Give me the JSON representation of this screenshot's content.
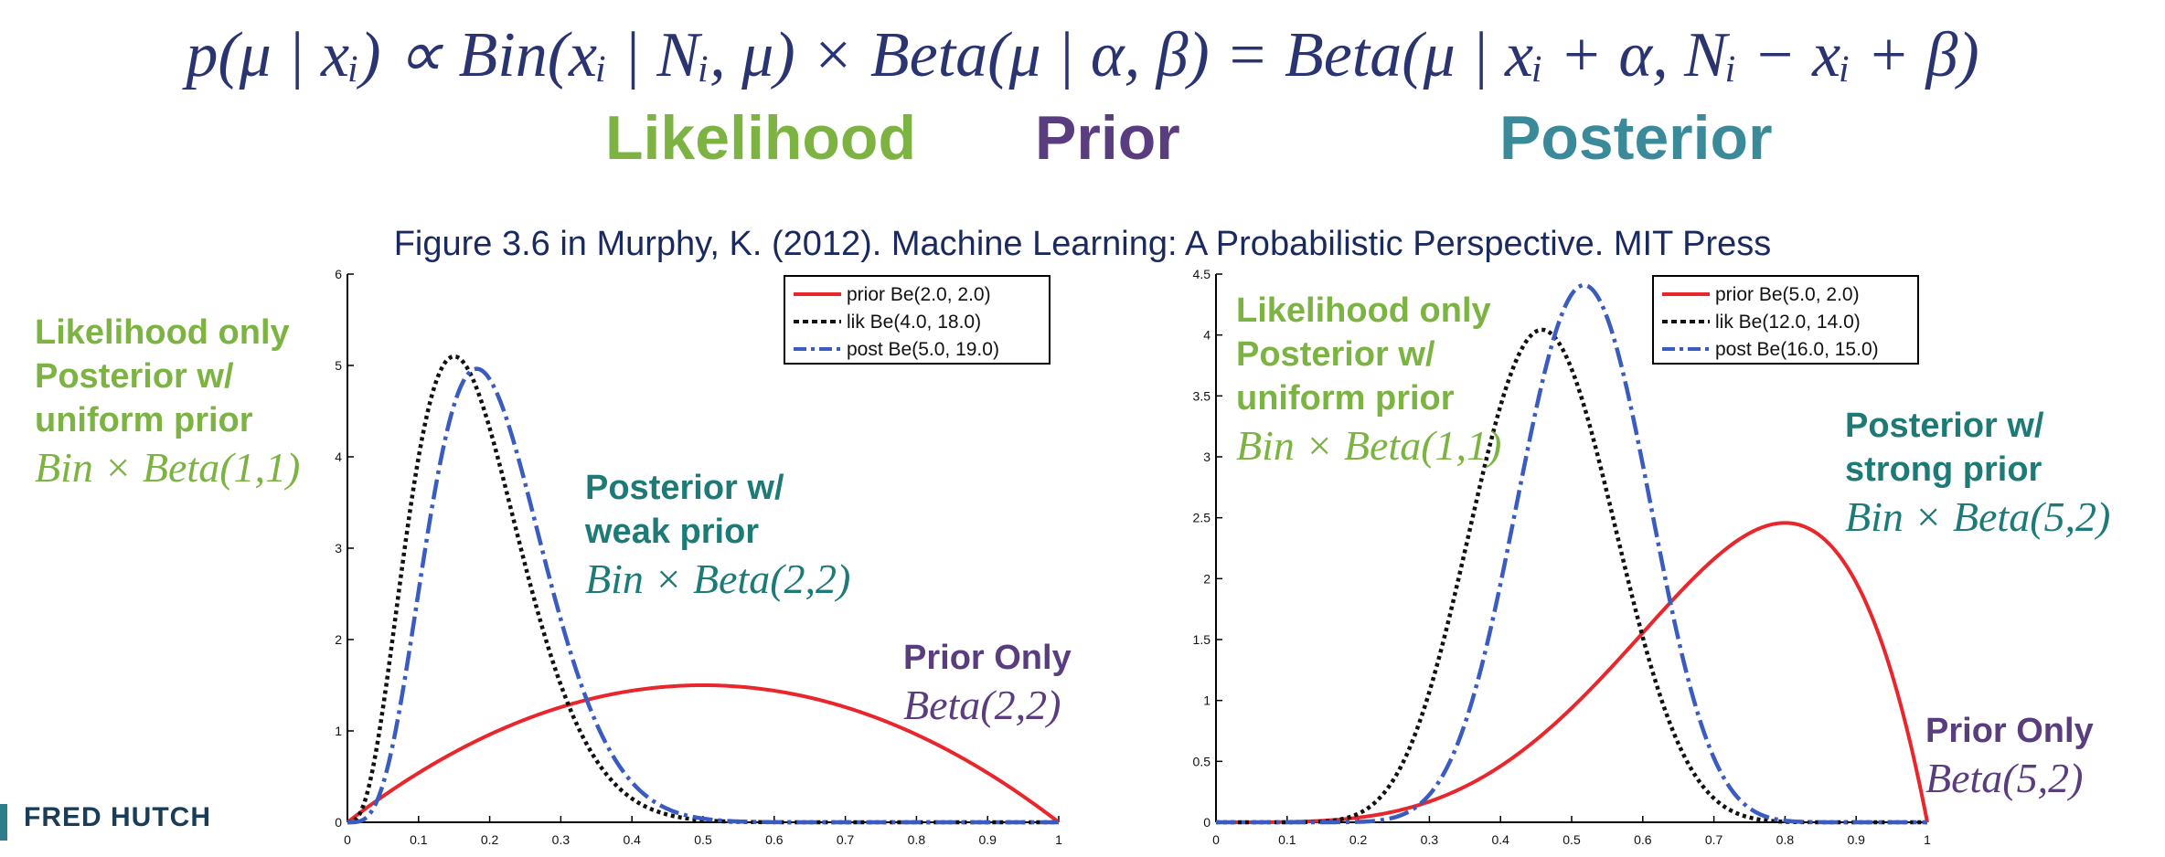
{
  "header": {
    "equation": "p(μ | xᵢ) ∝ Bin(xᵢ | Nᵢ, μ) × Beta(μ | α, β) = Beta(μ | xᵢ + α, Nᵢ − xᵢ + β)",
    "label_likelihood": "Likelihood",
    "label_prior": "Prior",
    "label_posterior": "Posterior",
    "caption": "Figure 3.6 in Murphy, K. (2012). Machine Learning: A Probabilistic Perspective. MIT Press",
    "colors": {
      "green": "#7cb342",
      "purple": "#5a3d7e",
      "teal": "#3b8a9a"
    }
  },
  "annotations": {
    "left": {
      "likelihood_title": "Likelihood only",
      "likelihood_sub1": "Posterior w/",
      "likelihood_sub2": "uniform prior",
      "likelihood_math": "Bin × Beta(1,1)",
      "posterior_title1": "Posterior w/",
      "posterior_title2": "weak prior",
      "posterior_math": "Bin × Beta(2,2)",
      "prior_title": "Prior Only",
      "prior_math": "Beta(2,2)"
    },
    "right": {
      "likelihood_title": "Likelihood only",
      "likelihood_sub1": "Posterior w/",
      "likelihood_sub2": "uniform prior",
      "likelihood_math": "Bin × Beta(1,1)",
      "posterior_title1": "Posterior w/",
      "posterior_title2": "strong prior",
      "posterior_math": "Bin × Beta(5,2)",
      "prior_title": "Prior Only",
      "prior_math": "Beta(5,2)"
    }
  },
  "logo": {
    "text": "FRED HUTCH"
  },
  "chart_data": [
    {
      "type": "line",
      "xlim": [
        0,
        1
      ],
      "ylim": [
        0,
        6
      ],
      "x_ticks": [
        "0",
        "0.1",
        "0.2",
        "0.3",
        "0.4",
        "0.5",
        "0.6",
        "0.7",
        "0.8",
        "0.9",
        "1"
      ],
      "y_ticks": [
        "0",
        "1",
        "2",
        "3",
        "4",
        "5",
        "6"
      ],
      "legend_position": "top-right",
      "series": [
        {
          "name": "prior Be(2.0, 2.0)",
          "a": 2.0,
          "b": 2.0,
          "color": "#e8262b",
          "style": "solid"
        },
        {
          "name": "lik Be(4.0, 18.0)",
          "a": 4.0,
          "b": 18.0,
          "color": "#111111",
          "style": "dotted"
        },
        {
          "name": "post Be(5.0, 19.0)",
          "a": 5.0,
          "b": 19.0,
          "color": "#3a5bbf",
          "style": "dashdot"
        }
      ]
    },
    {
      "type": "line",
      "xlim": [
        0,
        1
      ],
      "ylim": [
        0,
        4.5
      ],
      "x_ticks": [
        "0",
        "0.1",
        "0.2",
        "0.3",
        "0.4",
        "0.5",
        "0.6",
        "0.7",
        "0.8",
        "0.9",
        "1"
      ],
      "y_ticks": [
        "0",
        "0.5",
        "1",
        "1.5",
        "2",
        "2.5",
        "3",
        "3.5",
        "4",
        "4.5"
      ],
      "legend_position": "top-right",
      "series": [
        {
          "name": "prior Be(5.0, 2.0)",
          "a": 5.0,
          "b": 2.0,
          "color": "#e8262b",
          "style": "solid"
        },
        {
          "name": "lik Be(12.0, 14.0)",
          "a": 12.0,
          "b": 14.0,
          "color": "#111111",
          "style": "dotted"
        },
        {
          "name": "post Be(16.0, 15.0)",
          "a": 16.0,
          "b": 15.0,
          "color": "#3a5bbf",
          "style": "dashdot"
        }
      ]
    }
  ]
}
